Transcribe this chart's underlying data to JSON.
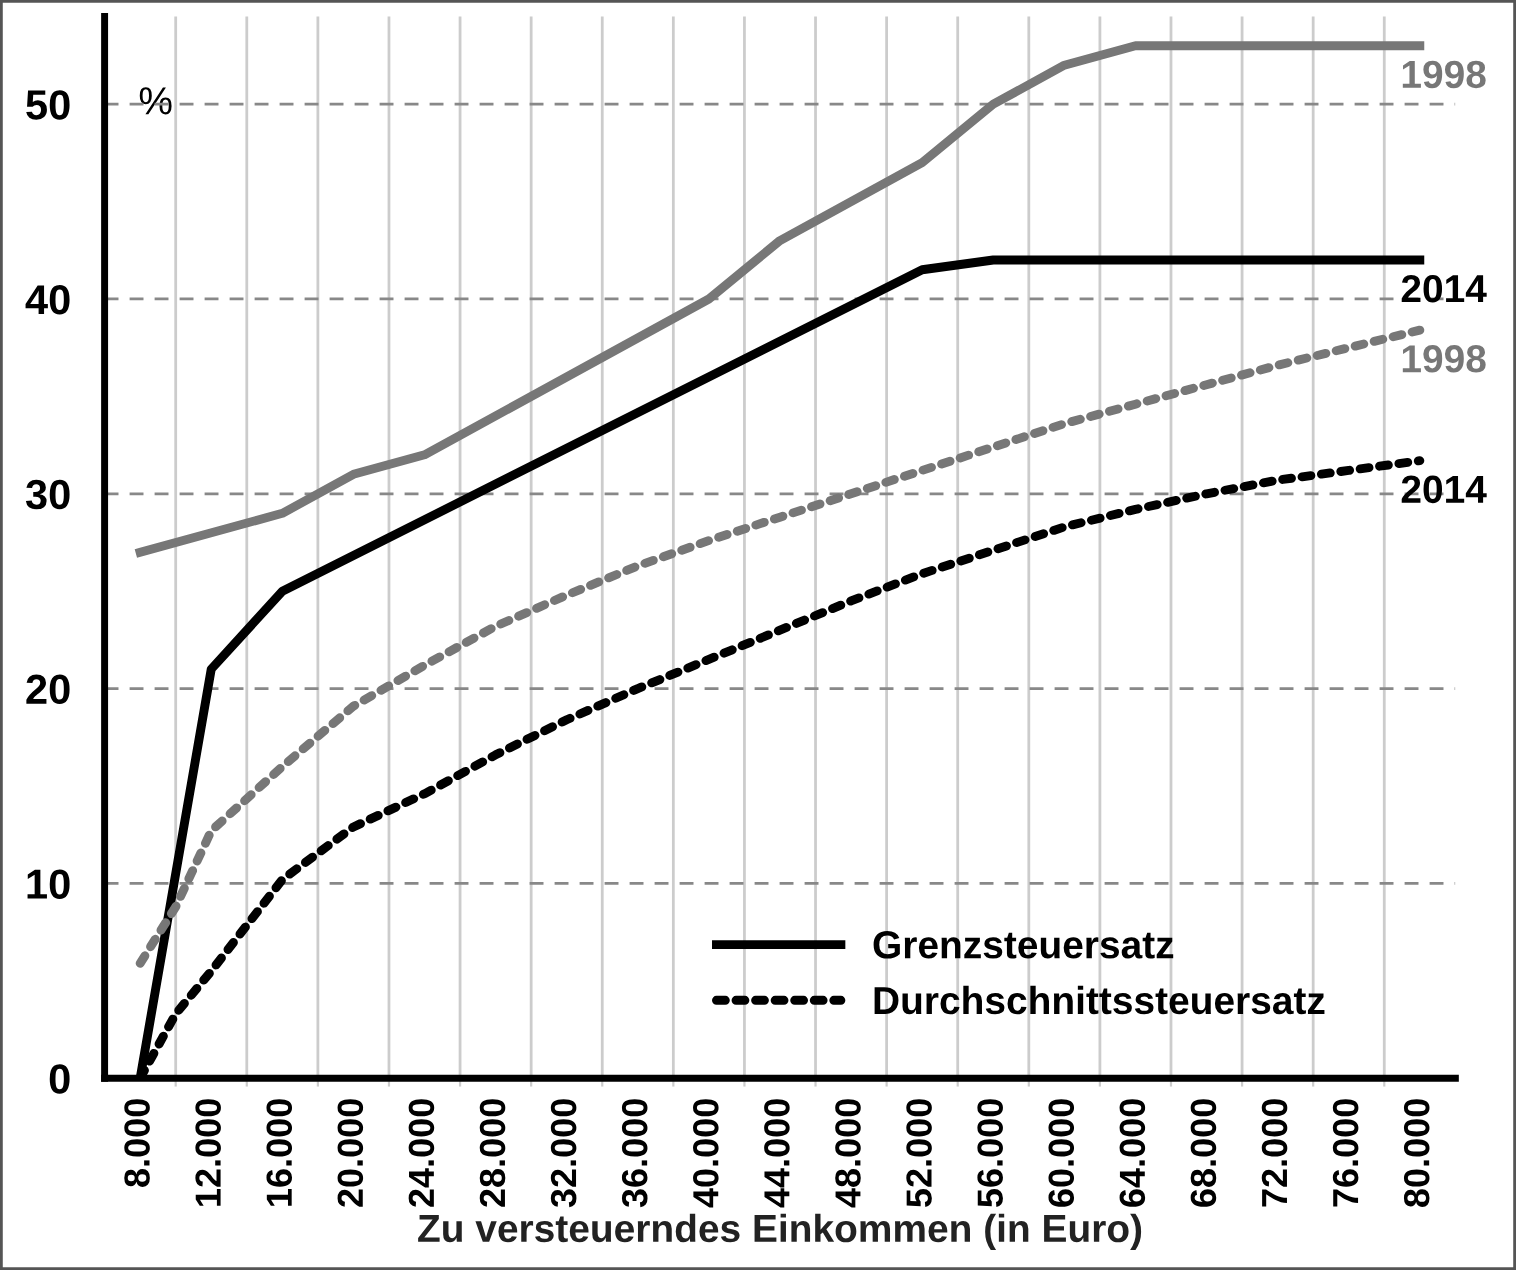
{
  "chart_data": {
    "type": "line",
    "xlabel": "Zu versteuerndes Einkommen (in Euro)",
    "ylabel": "%",
    "xlim": [
      6000,
      82000
    ],
    "ylim": [
      0,
      54.5
    ],
    "xticks": [
      {
        "value": 8000,
        "label": "8.000"
      },
      {
        "value": 10000,
        "label": null
      },
      {
        "value": 12000,
        "label": "12.000"
      },
      {
        "value": 14000,
        "label": null
      },
      {
        "value": 16000,
        "label": "16.000"
      },
      {
        "value": 18000,
        "label": null
      },
      {
        "value": 20000,
        "label": "20.000"
      },
      {
        "value": 22000,
        "label": null
      },
      {
        "value": 24000,
        "label": "24.000"
      },
      {
        "value": 26000,
        "label": null
      },
      {
        "value": 28000,
        "label": "28.000"
      },
      {
        "value": 30000,
        "label": null
      },
      {
        "value": 32000,
        "label": "32.000"
      },
      {
        "value": 34000,
        "label": null
      },
      {
        "value": 36000,
        "label": "36.000"
      },
      {
        "value": 38000,
        "label": null
      },
      {
        "value": 40000,
        "label": "40.000"
      },
      {
        "value": 42000,
        "label": null
      },
      {
        "value": 44000,
        "label": "44.000"
      },
      {
        "value": 46000,
        "label": null
      },
      {
        "value": 48000,
        "label": "48.000"
      },
      {
        "value": 50000,
        "label": null
      },
      {
        "value": 52000,
        "label": "52.000"
      },
      {
        "value": 54000,
        "label": null
      },
      {
        "value": 56000,
        "label": "56.000"
      },
      {
        "value": 58000,
        "label": null
      },
      {
        "value": 60000,
        "label": "60.000"
      },
      {
        "value": 62000,
        "label": null
      },
      {
        "value": 64000,
        "label": "64.000"
      },
      {
        "value": 66000,
        "label": null
      },
      {
        "value": 68000,
        "label": "68.000"
      },
      {
        "value": 70000,
        "label": null
      },
      {
        "value": 72000,
        "label": "72.000"
      },
      {
        "value": 74000,
        "label": null
      },
      {
        "value": 76000,
        "label": "76.000"
      },
      {
        "value": 78000,
        "label": null
      },
      {
        "value": 80000,
        "label": "80.000"
      }
    ],
    "yticks": [
      0,
      10,
      20,
      30,
      40,
      50
    ],
    "grid": true,
    "legend": "bottom right",
    "series": [
      {
        "color": "#777777",
        "line_style": "solid",
        "x": [
          8000,
          16000,
          20000,
          24000,
          40000,
          44000,
          52000,
          56000,
          60000,
          64000,
          80000
        ],
        "values": [
          27,
          29,
          31,
          32,
          40,
          43,
          47,
          50,
          52,
          53,
          53
        ]
      },
      {
        "name": "Grenzsteuersatz",
        "color": "#000000",
        "line_style": "solid",
        "x": [
          8000,
          12000,
          16000,
          52000,
          56000,
          80000
        ],
        "values": [
          0,
          21,
          25,
          41.5,
          42,
          42
        ]
      },
      {
        "color": "#777777",
        "line_style": "dotted",
        "x": [
          8000,
          10000,
          12000,
          16000,
          20000,
          24000,
          28000,
          32000,
          36000,
          40000,
          44000,
          48000,
          52000,
          56000,
          60000,
          64000,
          68000,
          72000,
          76000,
          80000
        ],
        "values": [
          5.9,
          8.8,
          12.7,
          16,
          19.1,
          21.2,
          23.2,
          24.8,
          26.3,
          27.6,
          28.8,
          30,
          31.2,
          32.4,
          33.6,
          34.6,
          35.6,
          36.6,
          37.5,
          38.4
        ]
      },
      {
        "name": "Durchschnittssteuersatz",
        "color": "#000000",
        "line_style": "dotted",
        "x": [
          8000,
          10000,
          12000,
          16000,
          20000,
          24000,
          28000,
          32000,
          36000,
          40000,
          44000,
          48000,
          52000,
          56000,
          60000,
          64000,
          68000,
          72000,
          76000,
          80000
        ],
        "values": [
          0,
          3.3,
          5.5,
          10.2,
          12.9,
          14.6,
          16.6,
          18.4,
          20,
          21.5,
          23,
          24.5,
          25.9,
          27.1,
          28.3,
          29.2,
          30,
          30.7,
          31.2,
          31.7
        ]
      }
    ],
    "annotations": [
      "1998",
      "2014",
      "1998",
      "2014"
    ]
  }
}
